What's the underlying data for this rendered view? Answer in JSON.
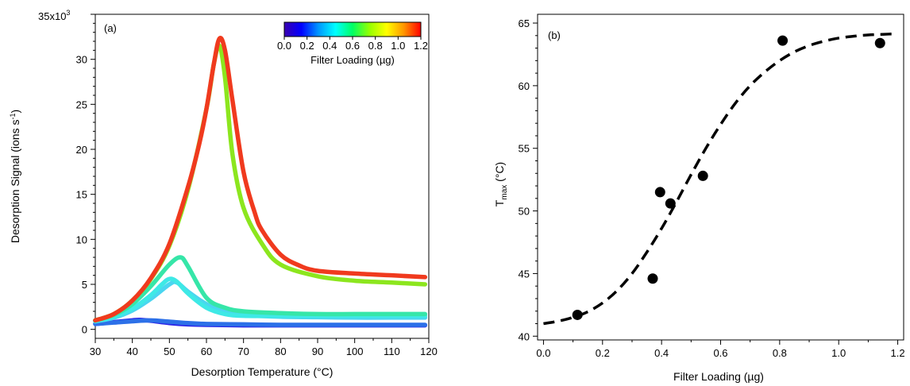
{
  "chart_data": [
    {
      "type": "line",
      "panel_label": "(a)",
      "xlabel": "Desorption Temperature (°C)",
      "ylabel": "Desorption Signal (ions s⁻¹)",
      "ylabel_main": "Desorption Signal (ions s",
      "ylabel_sup": "-1",
      "ylabel_end": ")",
      "xlim": [
        30,
        120
      ],
      "ylim": [
        -1,
        35
      ],
      "y_scale_label_base": "35x10",
      "y_scale_label_exp": "3",
      "xticks": [
        30,
        40,
        50,
        60,
        70,
        80,
        90,
        100,
        110,
        120
      ],
      "yticks": [
        0,
        5,
        10,
        15,
        20,
        25,
        30
      ],
      "grid": false,
      "colorbar": {
        "label": "Filter Loading (µg)",
        "ticks": [
          "0.0",
          "0.2",
          "0.4",
          "0.6",
          "0.8",
          "1.0",
          "1.2"
        ],
        "range": [
          0.0,
          1.2
        ],
        "colors": [
          "#3a00b0",
          "#0000ff",
          "#0096ff",
          "#00ffff",
          "#00ff64",
          "#96ff00",
          "#ffff00",
          "#ff9600",
          "#ff0000"
        ]
      },
      "series": [
        {
          "color": "#2b23e8",
          "x": [
            30,
            35,
            40,
            42,
            45,
            50,
            55,
            60,
            70,
            80,
            90,
            100,
            110,
            119
          ],
          "y": [
            0.6,
            0.8,
            1.0,
            1.05,
            0.95,
            0.7,
            0.55,
            0.5,
            0.45,
            0.45,
            0.45,
            0.45,
            0.45,
            0.45
          ]
        },
        {
          "color": "#2c70e8",
          "x": [
            30,
            35,
            40,
            45,
            50,
            55,
            60,
            70,
            80,
            90,
            100,
            110,
            119
          ],
          "y": [
            0.6,
            0.75,
            0.9,
            1.0,
            0.85,
            0.7,
            0.6,
            0.55,
            0.5,
            0.5,
            0.5,
            0.5,
            0.5
          ]
        },
        {
          "color": "#4ad6f0",
          "x": [
            30,
            35,
            40,
            45,
            50,
            52,
            55,
            60,
            65,
            70,
            80,
            90,
            100,
            110,
            119
          ],
          "y": [
            0.9,
            1.3,
            2.1,
            3.4,
            5.0,
            5.2,
            4.2,
            2.8,
            2.0,
            1.6,
            1.4,
            1.35,
            1.3,
            1.3,
            1.3
          ]
        },
        {
          "color": "#3ee9e6",
          "x": [
            30,
            35,
            40,
            45,
            48,
            50,
            52,
            55,
            60,
            65,
            70,
            80,
            90,
            100,
            110,
            119
          ],
          "y": [
            0.9,
            1.4,
            2.3,
            3.8,
            5.0,
            5.6,
            5.3,
            4.0,
            2.4,
            1.7,
            1.5,
            1.5,
            1.5,
            1.5,
            1.5,
            1.5
          ]
        },
        {
          "color": "#36e6a8",
          "x": [
            30,
            35,
            40,
            45,
            50,
            53,
            55,
            60,
            65,
            70,
            80,
            90,
            100,
            110,
            119
          ],
          "y": [
            1.0,
            1.6,
            2.8,
            4.8,
            7.2,
            8.0,
            7.0,
            3.5,
            2.4,
            2.0,
            1.8,
            1.7,
            1.7,
            1.7,
            1.7
          ]
        },
        {
          "color": "#8ce61e",
          "x": [
            30,
            35,
            40,
            45,
            50,
            55,
            60,
            62,
            63.5,
            65,
            67,
            70,
            75,
            80,
            90,
            100,
            110,
            119
          ],
          "y": [
            1.0,
            1.7,
            3.2,
            5.6,
            9.3,
            15.5,
            24.5,
            29.5,
            31.5,
            28.0,
            19.5,
            13.5,
            9.5,
            7.2,
            5.9,
            5.4,
            5.2,
            5.0
          ]
        },
        {
          "color": "#f03a1e",
          "x": [
            30,
            35,
            40,
            45,
            50,
            55,
            58,
            60,
            62,
            63.5,
            65,
            67,
            70,
            73,
            75,
            80,
            85,
            90,
            100,
            110,
            119
          ],
          "y": [
            1.0,
            1.7,
            3.2,
            5.7,
            9.5,
            15.8,
            20.5,
            24.5,
            29.5,
            32.3,
            31.0,
            25.5,
            17.5,
            13.0,
            11.0,
            8.3,
            7.1,
            6.5,
            6.2,
            6.0,
            5.8
          ]
        }
      ]
    },
    {
      "type": "scatter",
      "panel_label": "(b)",
      "xlabel": "Filter Loading (µg)",
      "ylabel_main": "T",
      "ylabel_sub": "max",
      "ylabel_end": " (°C)",
      "xlim": [
        -0.02,
        1.22
      ],
      "ylim": [
        39.7,
        65.7
      ],
      "xticks": [
        "0.0",
        "0.2",
        "0.4",
        "0.6",
        "0.8",
        "1.0",
        "1.2"
      ],
      "xtick_values": [
        0.0,
        0.2,
        0.4,
        0.6,
        0.8,
        1.0,
        1.2
      ],
      "yticks": [
        40,
        45,
        50,
        55,
        60,
        65
      ],
      "grid": false,
      "points": {
        "x": [
          0.115,
          0.37,
          0.395,
          0.43,
          0.54,
          0.81,
          1.14
        ],
        "y": [
          41.7,
          44.6,
          51.5,
          50.6,
          52.8,
          63.6,
          63.4
        ]
      },
      "fit": {
        "style": "dashed",
        "x": [
          0.0,
          0.05,
          0.1,
          0.15,
          0.2,
          0.25,
          0.3,
          0.35,
          0.4,
          0.45,
          0.5,
          0.55,
          0.6,
          0.65,
          0.7,
          0.75,
          0.8,
          0.85,
          0.9,
          0.95,
          1.0,
          1.05,
          1.1,
          1.15,
          1.2
        ],
        "y": [
          41.0,
          41.2,
          41.5,
          41.95,
          42.65,
          43.65,
          45.0,
          46.7,
          48.6,
          50.7,
          52.9,
          55.0,
          56.9,
          58.6,
          60.0,
          61.1,
          62.0,
          62.7,
          63.2,
          63.55,
          63.8,
          63.95,
          64.05,
          64.1,
          64.15
        ]
      }
    }
  ]
}
